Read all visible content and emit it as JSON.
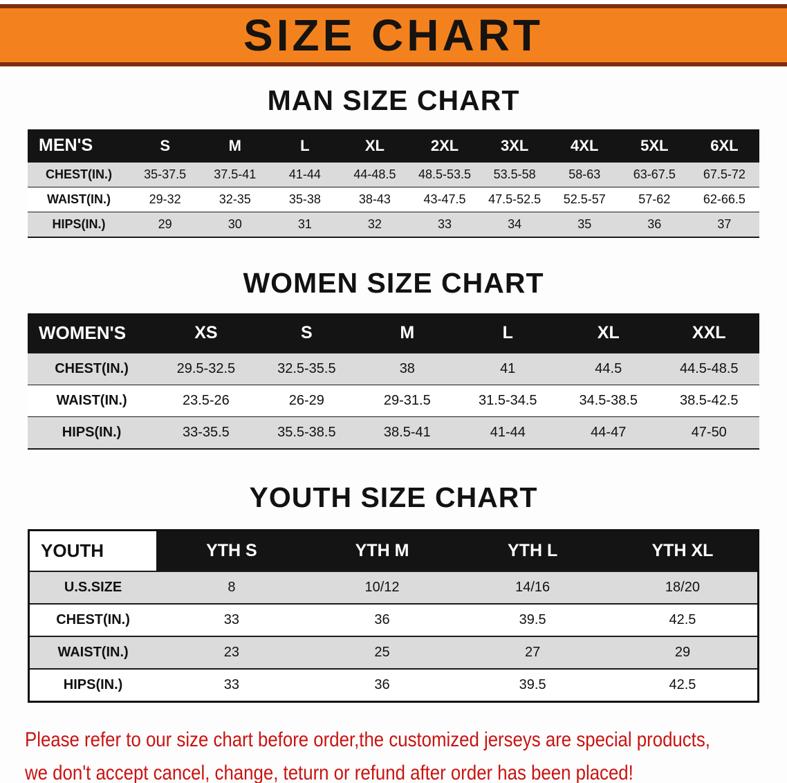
{
  "banner": {
    "title": "SIZE CHART"
  },
  "sections": [
    {
      "id": "men",
      "title": "MAN SIZE CHART",
      "table": {
        "header": [
          "MEN'S",
          "S",
          "M",
          "L",
          "XL",
          "2XL",
          "3XL",
          "4XL",
          "5XL",
          "6XL"
        ],
        "rows": [
          [
            "CHEST(IN.)",
            "35-37.5",
            "37.5-41",
            "41-44",
            "44-48.5",
            "48.5-53.5",
            "53.5-58",
            "58-63",
            "63-67.5",
            "67.5-72"
          ],
          [
            "WAIST(IN.)",
            "29-32",
            "32-35",
            "35-38",
            "38-43",
            "43-47.5",
            "47.5-52.5",
            "52.5-57",
            "57-62",
            "62-66.5"
          ],
          [
            "HIPS(IN.)",
            "29",
            "30",
            "31",
            "32",
            "33",
            "34",
            "35",
            "36",
            "37"
          ]
        ]
      }
    },
    {
      "id": "women",
      "title": "WOMEN SIZE CHART",
      "table": {
        "header": [
          "WOMEN'S",
          "XS",
          "S",
          "M",
          "L",
          "XL",
          "XXL"
        ],
        "rows": [
          [
            "CHEST(IN.)",
            "29.5-32.5",
            "32.5-35.5",
            "38",
            "41",
            "44.5",
            "44.5-48.5"
          ],
          [
            "WAIST(IN.)",
            "23.5-26",
            "26-29",
            "29-31.5",
            "31.5-34.5",
            "34.5-38.5",
            "38.5-42.5"
          ],
          [
            "HIPS(IN.)",
            "33-35.5",
            "35.5-38.5",
            "38.5-41",
            "41-44",
            "44-47",
            "47-50"
          ]
        ]
      }
    },
    {
      "id": "youth",
      "title": "YOUTH SIZE CHART",
      "table": {
        "header": [
          "YOUTH",
          "YTH S",
          "YTH M",
          "YTH L",
          "YTH XL"
        ],
        "rows": [
          [
            "U.S.SIZE",
            "8",
            "10/12",
            "14/16",
            "18/20"
          ],
          [
            "CHEST(IN.)",
            "33",
            "36",
            "39.5",
            "42.5"
          ],
          [
            "WAIST(IN.)",
            "23",
            "25",
            "27",
            "29"
          ],
          [
            "HIPS(IN.)",
            "33",
            "36",
            "39.5",
            "42.5"
          ]
        ]
      }
    }
  ],
  "footer": {
    "lines": [
      "Please refer to our size chart before order,the customized jerseys are special products,",
      "we don't accept cancel, change, teturn or refund after order has been placed!"
    ]
  },
  "colors": {
    "banner_orange": "#F3821E",
    "banner_edge": "#7E2B0E",
    "header_black": "#141414",
    "stripe_gray": "#DBDBDB",
    "notice_red": "#C91311"
  }
}
